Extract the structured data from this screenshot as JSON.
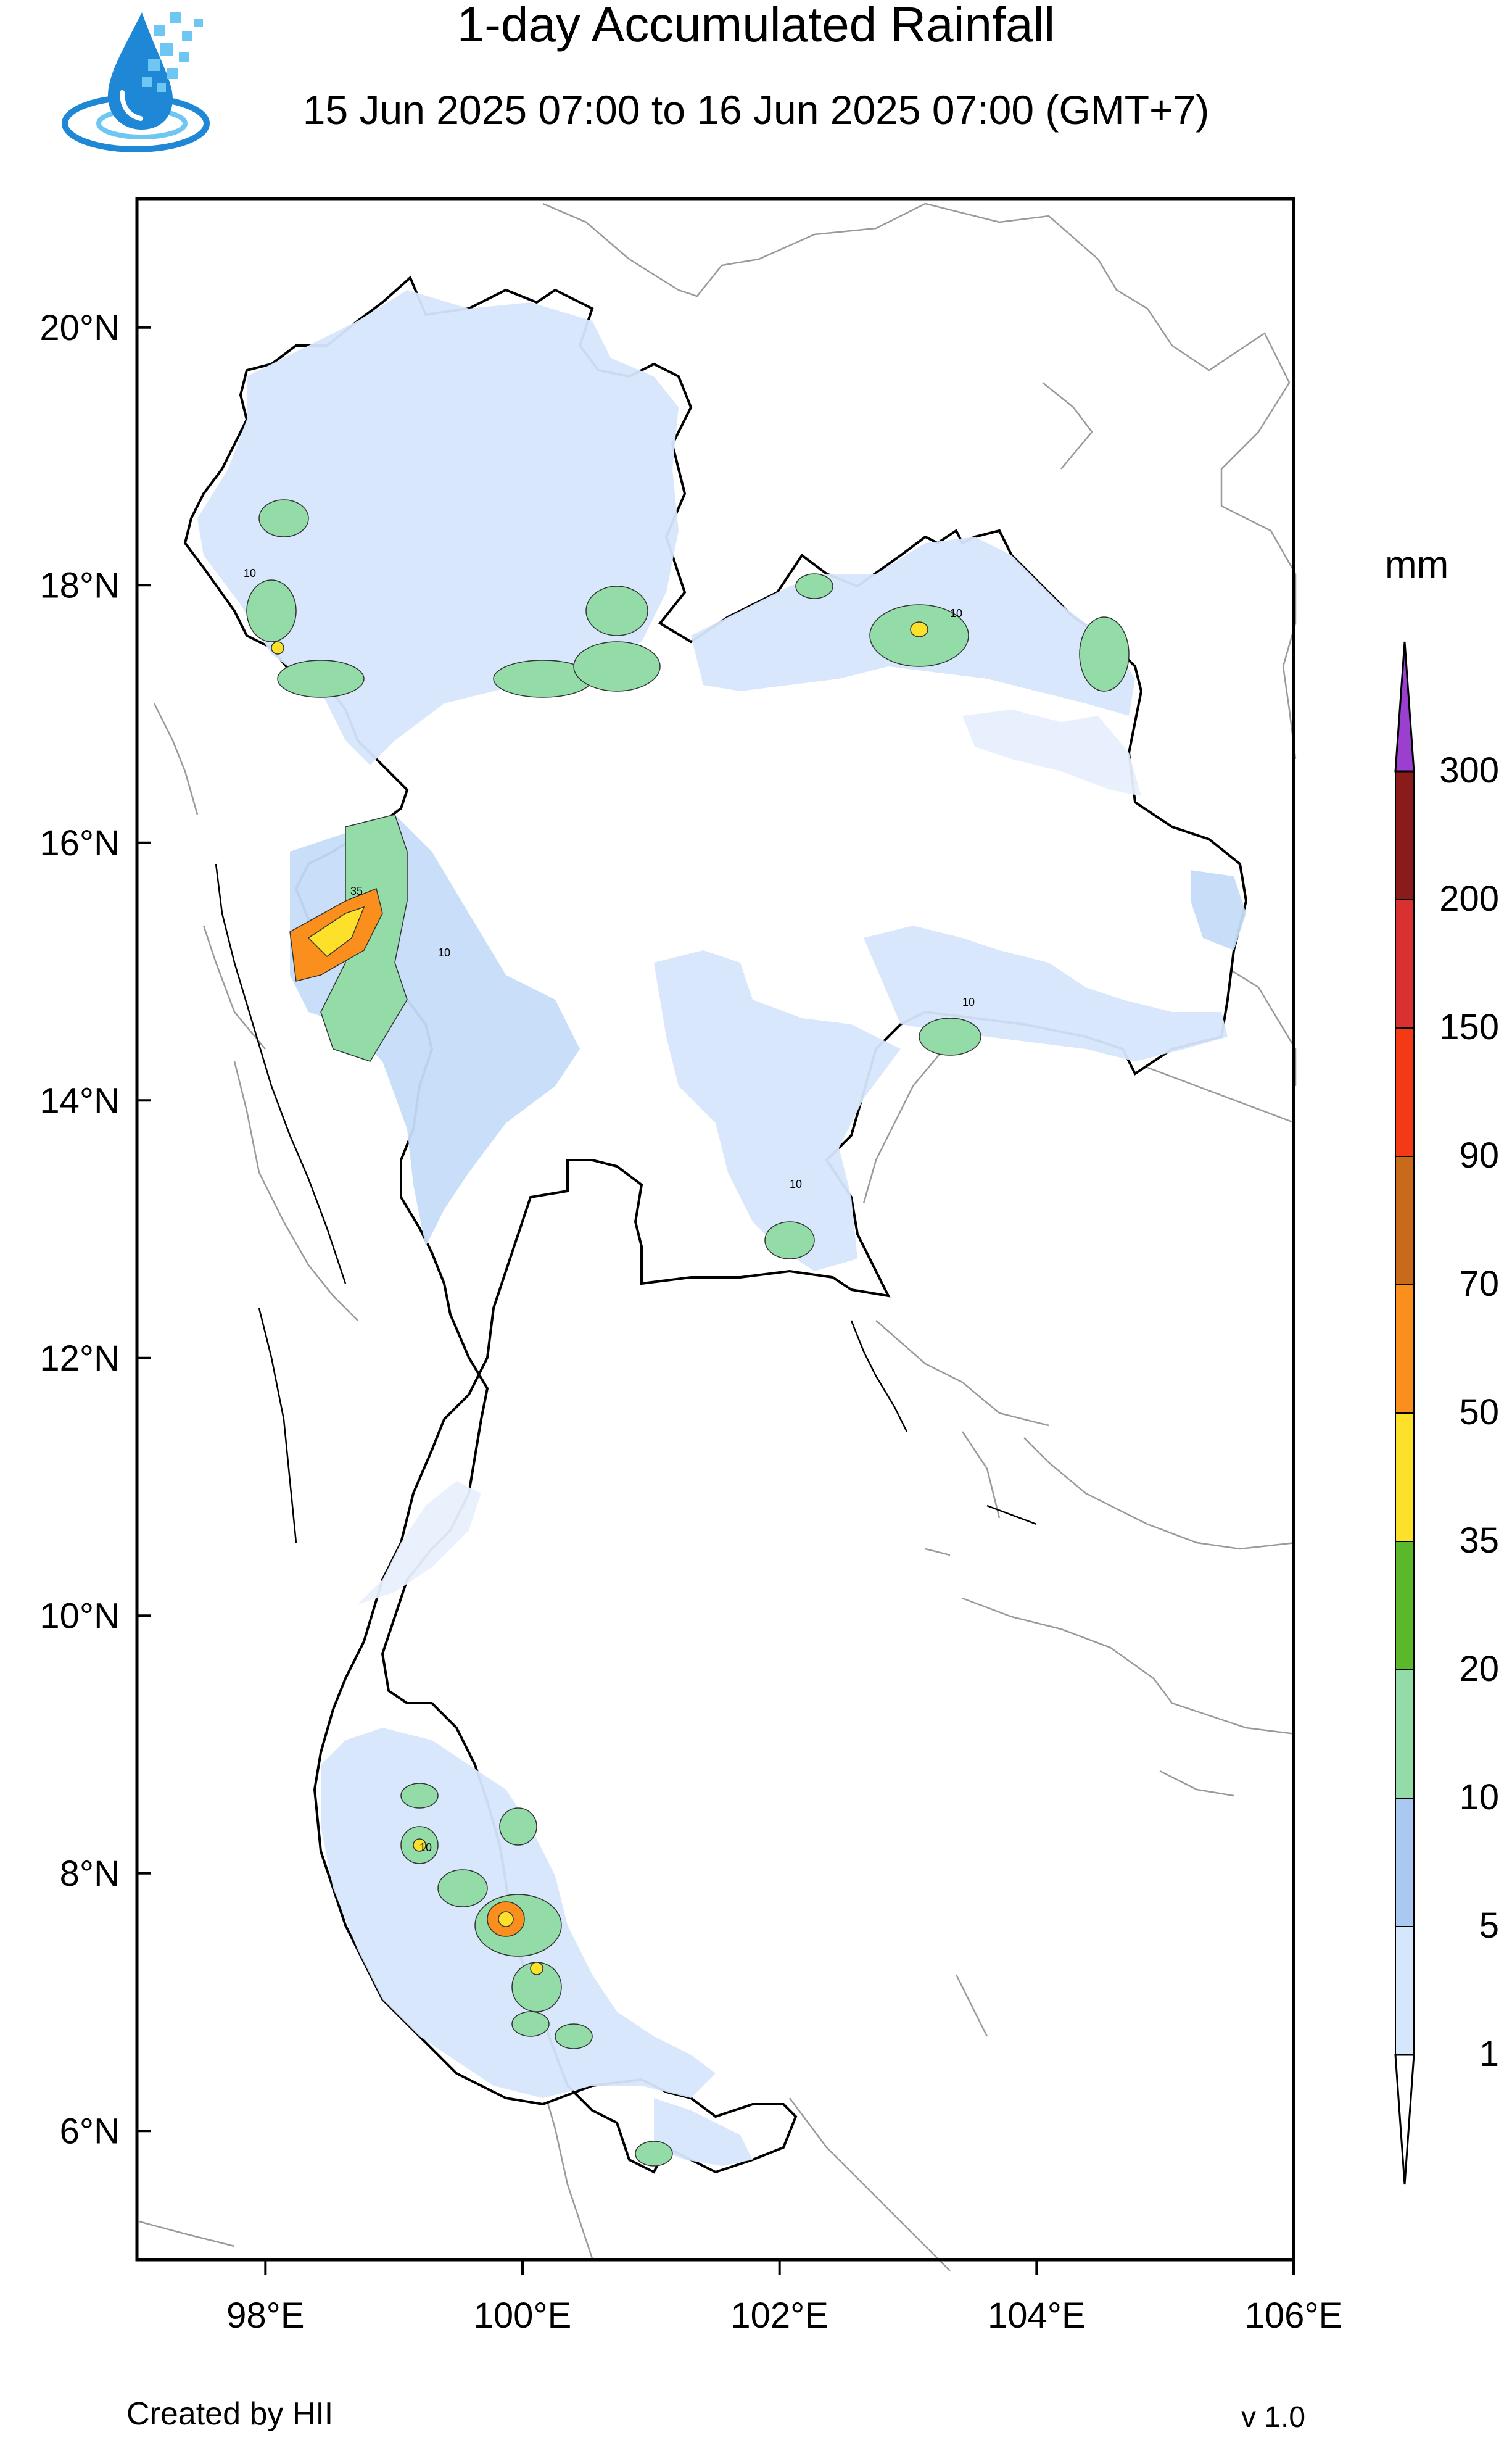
{
  "header": {
    "title": "1-day Accumulated Rainfall",
    "subtitle": "15 Jun 2025 07:00 to 16 Jun 2025 07:00 (GMT+7)"
  },
  "logo": {
    "icon": "water-drop-pixel-icon",
    "colors": [
      "#1e88d6",
      "#6ec6f2"
    ]
  },
  "map": {
    "lat_range": [
      5.0,
      21.0
    ],
    "lon_range": [
      97.0,
      106.0
    ],
    "lat_ticks": [
      "6°N",
      "8°N",
      "10°N",
      "12°N",
      "14°N",
      "16°N",
      "18°N",
      "20°N"
    ],
    "lon_ticks": [
      "98°E",
      "100°E",
      "102°E",
      "104°E",
      "106°E"
    ],
    "contour_labels": [
      "10",
      "35"
    ]
  },
  "colorbar": {
    "unit": "mm",
    "levels": [
      "1",
      "5",
      "10",
      "20",
      "35",
      "50",
      "70",
      "90",
      "150",
      "200",
      "300"
    ],
    "colors": [
      "#ffffff",
      "#d6e6fb",
      "#a9c9f3",
      "#93dca8",
      "#5bb82a",
      "#fde02a",
      "#fb8f1e",
      "#c86a1a",
      "#f43a14",
      "#d93030",
      "#8b1a1a",
      "#9a3fd0"
    ]
  },
  "footer": {
    "credit": "Created by HII",
    "version": "v 1.0"
  }
}
